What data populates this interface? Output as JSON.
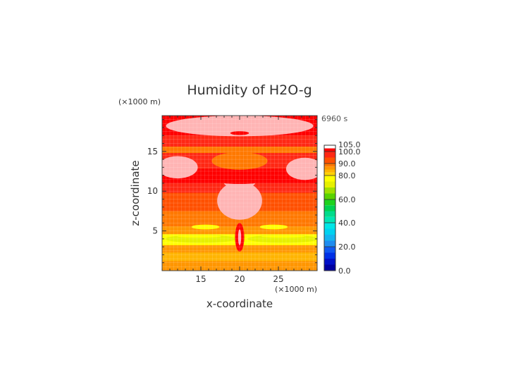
{
  "chart_data": {
    "type": "heatmap",
    "title": "Humidity of H2O-g",
    "time_label": "6960 s",
    "xlabel": "x-coordinate",
    "ylabel": "z-coordinate",
    "x_unit": "(×1000 m)",
    "y_unit": "(×1000 m)",
    "xlim": [
      10,
      30
    ],
    "ylim": [
      0,
      19.5
    ],
    "x_ticks": [
      15,
      20,
      25
    ],
    "y_ticks": [
      5,
      10,
      15
    ],
    "grid": true,
    "colorbar": {
      "tick_labels": [
        "0.0",
        "20.0",
        "40.0",
        "60.0",
        "80.0",
        "90.0",
        "100.0",
        "105.0"
      ],
      "tick_values": [
        0,
        20,
        40,
        60,
        80,
        90,
        100,
        105
      ],
      "bands": [
        {
          "from": 0,
          "to": 5,
          "color": "#0000a0"
        },
        {
          "from": 5,
          "to": 10,
          "color": "#0010c8"
        },
        {
          "from": 10,
          "to": 15,
          "color": "#0030e6"
        },
        {
          "from": 15,
          "to": 20,
          "color": "#1058f0"
        },
        {
          "from": 20,
          "to": 25,
          "color": "#1e8cf0"
        },
        {
          "from": 25,
          "to": 30,
          "color": "#14b4f0"
        },
        {
          "from": 30,
          "to": 35,
          "color": "#00d2f0"
        },
        {
          "from": 35,
          "to": 40,
          "color": "#00e6e6"
        },
        {
          "from": 40,
          "to": 45,
          "color": "#00e6b4"
        },
        {
          "from": 45,
          "to": 50,
          "color": "#00dc8c"
        },
        {
          "from": 50,
          "to": 55,
          "color": "#00d250"
        },
        {
          "from": 55,
          "to": 60,
          "color": "#1ed21e"
        },
        {
          "from": 60,
          "to": 65,
          "color": "#5ad200"
        },
        {
          "from": 65,
          "to": 70,
          "color": "#a0e000"
        },
        {
          "from": 70,
          "to": 75,
          "color": "#e6f000"
        },
        {
          "from": 75,
          "to": 80,
          "color": "#ffff00"
        },
        {
          "from": 80,
          "to": 82.5,
          "color": "#ffd200"
        },
        {
          "from": 82.5,
          "to": 85,
          "color": "#ffb400"
        },
        {
          "from": 85,
          "to": 87.5,
          "color": "#ff9600"
        },
        {
          "from": 87.5,
          "to": 90,
          "color": "#ff7800"
        },
        {
          "from": 90,
          "to": 95,
          "color": "#ff5000"
        },
        {
          "from": 95,
          "to": 100,
          "color": "#ff2814"
        },
        {
          "from": 100,
          "to": 102.5,
          "color": "#ff0000"
        },
        {
          "from": 102.5,
          "to": 105,
          "color": "#ffb4b4"
        }
      ]
    },
    "field_description": "approximate humidity (%) contour bands",
    "bands_z": [
      {
        "z0": 0.0,
        "z1": 1.2,
        "value": 86
      },
      {
        "z0": 1.2,
        "z1": 2.3,
        "value": 84
      },
      {
        "z0": 2.3,
        "z1": 3.2,
        "value": 86
      },
      {
        "z0": 3.2,
        "z1": 4.6,
        "value": 76
      },
      {
        "z0": 4.6,
        "z1": 5.6,
        "value": 86
      },
      {
        "z0": 5.6,
        "z1": 7.5,
        "value": 88
      },
      {
        "z0": 7.5,
        "z1": 9.8,
        "value": 93
      },
      {
        "z0": 9.8,
        "z1": 11.0,
        "value": 97
      },
      {
        "z0": 11.0,
        "z1": 12.8,
        "value": 101
      },
      {
        "z0": 12.8,
        "z1": 14.8,
        "value": 95
      },
      {
        "z0": 14.8,
        "z1": 15.6,
        "value": 89
      },
      {
        "z0": 15.6,
        "z1": 17.0,
        "value": 97
      },
      {
        "z0": 17.0,
        "z1": 19.5,
        "value": 101
      }
    ],
    "regions": [
      {
        "kind": "ellipse",
        "cx": 20.0,
        "cz": 8.8,
        "rx": 2.9,
        "rz": 2.4,
        "value": 104
      },
      {
        "kind": "ellipse",
        "cx": 20.0,
        "cz": 11.0,
        "rx": 2.0,
        "rz": 0.6,
        "value": 104
      },
      {
        "kind": "ellipse",
        "cx": 20.0,
        "cz": 18.2,
        "rx": 9.5,
        "rz": 1.3,
        "value": 104
      },
      {
        "kind": "ellipse",
        "cx": 20.0,
        "cz": 17.3,
        "rx": 1.2,
        "rz": 0.25,
        "value": 101
      },
      {
        "kind": "ellipse",
        "cx": 20.0,
        "cz": 13.8,
        "rx": 3.6,
        "rz": 1.1,
        "value": 88
      },
      {
        "kind": "ellipse",
        "cx": 20.0,
        "cz": 11.4,
        "rx": 3.4,
        "rz": 0.5,
        "value": 101
      },
      {
        "kind": "ellipse",
        "cx": 12.0,
        "cz": 13.0,
        "rx": 2.6,
        "rz": 1.4,
        "value": 104
      },
      {
        "kind": "ellipse",
        "cx": 28.4,
        "cz": 12.8,
        "rx": 2.4,
        "rz": 1.4,
        "value": 104
      },
      {
        "kind": "ellipse",
        "cx": 15.0,
        "cz": 4.0,
        "rx": 4.6,
        "rz": 0.5,
        "value": 70
      },
      {
        "kind": "ellipse",
        "cx": 25.6,
        "cz": 4.0,
        "rx": 4.6,
        "rz": 0.5,
        "value": 70
      },
      {
        "kind": "ellipse",
        "cx": 14.8,
        "cz": 4.3,
        "rx": 2.8,
        "rz": 0.15,
        "value": 78
      },
      {
        "kind": "ellipse",
        "cx": 25.6,
        "cz": 4.3,
        "rx": 2.8,
        "rz": 0.15,
        "value": 78
      },
      {
        "kind": "ellipse",
        "cx": 15.6,
        "cz": 5.5,
        "rx": 1.8,
        "rz": 0.3,
        "value": 79
      },
      {
        "kind": "ellipse",
        "cx": 24.4,
        "cz": 5.5,
        "rx": 1.8,
        "rz": 0.3,
        "value": 79
      },
      {
        "kind": "ellipse",
        "cx": 20.0,
        "cz": 4.2,
        "rx": 0.6,
        "rz": 1.8,
        "value": 101
      },
      {
        "kind": "ellipse",
        "cx": 20.0,
        "cz": 4.2,
        "rx": 0.2,
        "rz": 1.0,
        "value": 104
      }
    ]
  }
}
